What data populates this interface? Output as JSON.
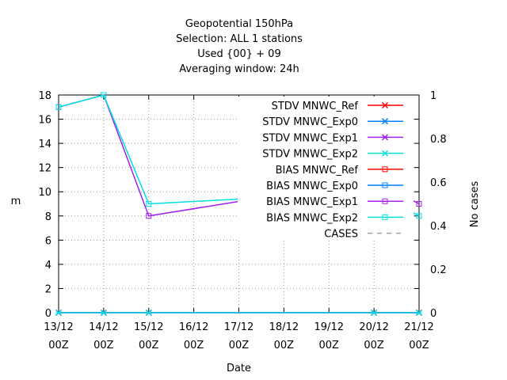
{
  "chart_data": {
    "type": "line",
    "title_lines": [
      "Geopotential 150hPa",
      "Selection: ALL      1 stations",
      "Used {00} + 09",
      "Averaging window: 24h"
    ],
    "xlabel": "Date",
    "ylabel": "m",
    "y2label": "No cases",
    "x_ticks": [
      {
        "date": "13/12",
        "hour": "00Z"
      },
      {
        "date": "14/12",
        "hour": "00Z"
      },
      {
        "date": "15/12",
        "hour": "00Z"
      },
      {
        "date": "16/12",
        "hour": "00Z"
      },
      {
        "date": "17/12",
        "hour": "00Z"
      },
      {
        "date": "18/12",
        "hour": "00Z"
      },
      {
        "date": "19/12",
        "hour": "00Z"
      },
      {
        "date": "20/12",
        "hour": "00Z"
      },
      {
        "date": "21/12",
        "hour": "00Z"
      }
    ],
    "ylim": [
      0,
      18
    ],
    "y_ticks": [
      "0",
      "2",
      "4",
      "6",
      "8",
      "10",
      "12",
      "14",
      "16",
      "18"
    ],
    "y2lim": [
      0,
      1
    ],
    "y2_ticks": [
      "0",
      "0.2",
      "0.4",
      "0.6",
      "0.8",
      "1"
    ],
    "grid": true,
    "legend_position": "top-right",
    "series": [
      {
        "name": "STDV MNWC_Ref",
        "color": "#ff0000",
        "marker": "x",
        "x": [
          0,
          1,
          2,
          7,
          8
        ],
        "y": [
          0,
          0,
          0,
          0,
          0
        ]
      },
      {
        "name": "STDV MNWC_Exp0",
        "color": "#0080ff",
        "marker": "x",
        "x": [
          0,
          1,
          2,
          7,
          8
        ],
        "y": [
          0,
          0,
          0,
          0,
          0
        ]
      },
      {
        "name": "STDV MNWC_Exp1",
        "color": "#a020f0",
        "marker": "x",
        "x": [
          0,
          1,
          2,
          7,
          8
        ],
        "y": [
          0,
          0,
          0,
          0,
          0
        ]
      },
      {
        "name": "STDV MNWC_Exp2",
        "color": "#00e0e0",
        "marker": "x",
        "x": [
          0,
          1,
          2,
          7,
          8
        ],
        "y": [
          0,
          0,
          0,
          0,
          0
        ]
      },
      {
        "name": "BIAS MNWC_Ref",
        "color": "#ff0000",
        "marker": "square",
        "x": [],
        "y": []
      },
      {
        "name": "BIAS MNWC_Exp0",
        "color": "#0080ff",
        "marker": "square",
        "x": [],
        "y": []
      },
      {
        "name": "BIAS MNWC_Exp1",
        "color": "#a020f0",
        "marker": "square",
        "x": [
          0,
          1,
          2,
          7,
          8
        ],
        "y": [
          17,
          18,
          8,
          11,
          9
        ]
      },
      {
        "name": "BIAS MNWC_Exp2",
        "color": "#00e0e0",
        "marker": "square",
        "x": [
          0,
          1,
          2,
          7,
          8
        ],
        "y": [
          17,
          18,
          9,
          10,
          8
        ]
      },
      {
        "name": "CASES",
        "color": "#a0a0a0",
        "marker": "none",
        "dashed": true,
        "x": [],
        "y": []
      }
    ]
  }
}
